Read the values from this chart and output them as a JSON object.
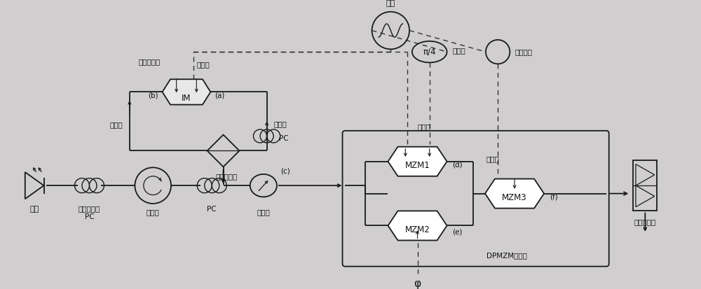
{
  "bg_color": "#d0cece",
  "lc": "#1a1a1a",
  "figsize": [
    10.0,
    4.13
  ],
  "dpi": 100,
  "labels": {
    "lo": "本振",
    "splitter": "电分路器",
    "phase": "π/4",
    "phase_label": "移相器",
    "im_label": "IM",
    "im_a": "(a)",
    "im_b": "(b)",
    "pbc": "偏振合束器",
    "cw": "顺时针",
    "ccw": "逆时针",
    "pc_label": "PC",
    "pc1_label": "偏振控制器",
    "circ": "环形器",
    "pol": "起偏器",
    "pol_c": "(c)",
    "src": "光源",
    "mzm1": "MZM1",
    "mzm2": "MZM2",
    "mzm3": "MZM3",
    "dpmzm": "DPMZM调制器",
    "pd": "光电探测器",
    "maxpt": "最大点",
    "minpt": "最小点",
    "im_maxpt": "最大点",
    "phi": "φ",
    "im_mod": "强度调制器"
  }
}
